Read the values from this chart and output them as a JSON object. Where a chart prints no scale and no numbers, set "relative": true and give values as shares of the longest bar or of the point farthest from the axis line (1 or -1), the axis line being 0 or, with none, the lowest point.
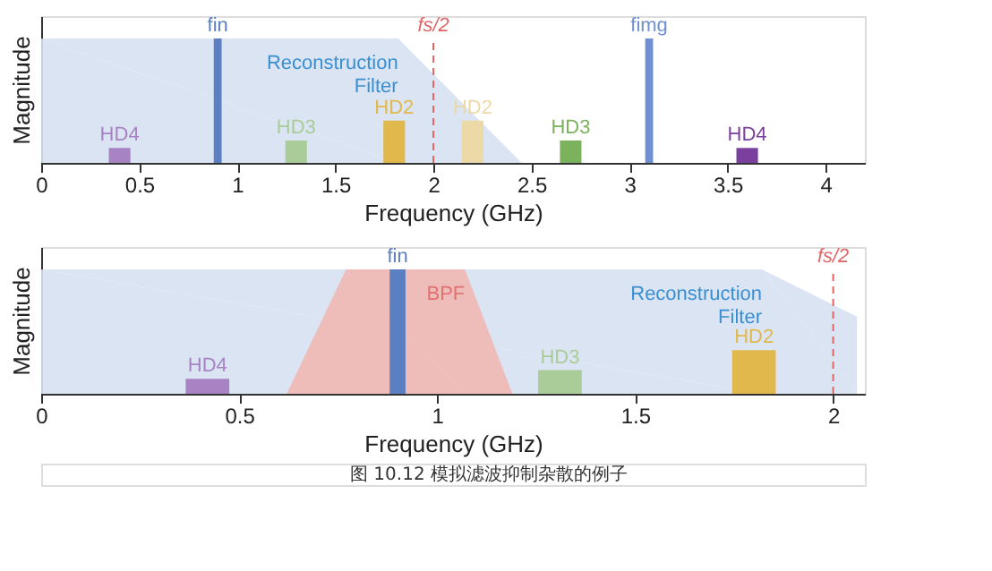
{
  "chart_data": [
    {
      "type": "bar",
      "relative": true,
      "xlabel": "Frequency (GHz)",
      "ylabel": "Magnitude",
      "xlim": [
        0,
        4.2
      ],
      "xticks": [
        0,
        0.5,
        1,
        1.5,
        2,
        2.5,
        3,
        3.5,
        4
      ],
      "grid": false,
      "series": [
        {
          "type": "area",
          "color": "#d6e1f2",
          "x": [
            0,
            1.82,
            2.45
          ],
          "values": [
            1,
            1,
            0
          ]
        },
        {
          "type": "bar",
          "x": [
            0.9,
            3.1
          ],
          "values": [
            1,
            1
          ],
          "colors": [
            "#5b7fc0",
            "#6f8fd0"
          ]
        },
        {
          "type": "bar",
          "x": [
            0.4,
            1.3,
            1.8,
            2.2,
            2.7,
            3.6
          ],
          "values": [
            0.12,
            0.18,
            0.34,
            0.34,
            0.18,
            0.12
          ],
          "colors": [
            "#a783c4",
            "#a9cc98",
            "#e0b84c",
            "#ecd9a8",
            "#7cb25e",
            "#7b3f9e"
          ]
        }
      ],
      "ref_lines": [
        {
          "axis": "x",
          "value": 2,
          "label": "fs/2",
          "color": "#e06666",
          "line_style": "dashed"
        }
      ],
      "annotations": [
        {
          "text": "fin",
          "x": 0.9,
          "y": 1
        },
        {
          "text": "fimg",
          "x": 3.1,
          "y": 1
        },
        {
          "text": "HD4",
          "x": 0.4,
          "y": 0.12
        },
        {
          "text": "HD3",
          "x": 1.3,
          "y": 0.18
        },
        {
          "text": "HD2",
          "x": 1.8,
          "y": 0.34
        },
        {
          "text": "HD2",
          "x": 2.2,
          "y": 0.34
        },
        {
          "text": "HD3",
          "x": 2.7,
          "y": 0.18
        },
        {
          "text": "HD4",
          "x": 3.6,
          "y": 0.12
        },
        "Reconstruction Filter"
      ]
    },
    {
      "type": "bar",
      "relative": true,
      "xlabel": "Frequency (GHz)",
      "ylabel": "Magnitude",
      "xlim": [
        0,
        2.08
      ],
      "xticks": [
        0,
        0.5,
        1,
        1.5,
        2
      ],
      "grid": false,
      "series": [
        {
          "type": "area",
          "color": "#d6e1f2",
          "x": [
            0,
            1.82,
            2.06,
            2.06
          ],
          "values": [
            1,
            1,
            0.62,
            0
          ]
        },
        {
          "type": "area",
          "color": "#efb8b4",
          "x": [
            0.62,
            0.77,
            1.07,
            1.19
          ],
          "values": [
            0,
            1,
            1,
            0
          ]
        },
        {
          "type": "bar",
          "x": [
            0.9
          ],
          "values": [
            1
          ],
          "colors": [
            "#5b7fc0"
          ]
        },
        {
          "type": "bar",
          "x": [
            0.42,
            1.31,
            1.8
          ],
          "values": [
            0.12,
            0.19,
            0.35
          ],
          "colors": [
            "#a783c4",
            "#a9cc98",
            "#e0b84c"
          ]
        }
      ],
      "ref_lines": [
        {
          "axis": "x",
          "value": 2,
          "label": "fs/2",
          "color": "#e06666",
          "line_style": "dashed"
        }
      ],
      "annotations": [
        {
          "text": "fin",
          "x": 0.9,
          "y": 1
        },
        {
          "text": "HD4",
          "x": 0.42,
          "y": 0.12
        },
        {
          "text": "HD3",
          "x": 1.31,
          "y": 0.19
        },
        {
          "text": "HD2",
          "x": 1.8,
          "y": 0.35
        },
        "Reconstruction Filter",
        "BPF",
        "图 10.12 模拟滤波抑制杂散的例子"
      ]
    }
  ]
}
